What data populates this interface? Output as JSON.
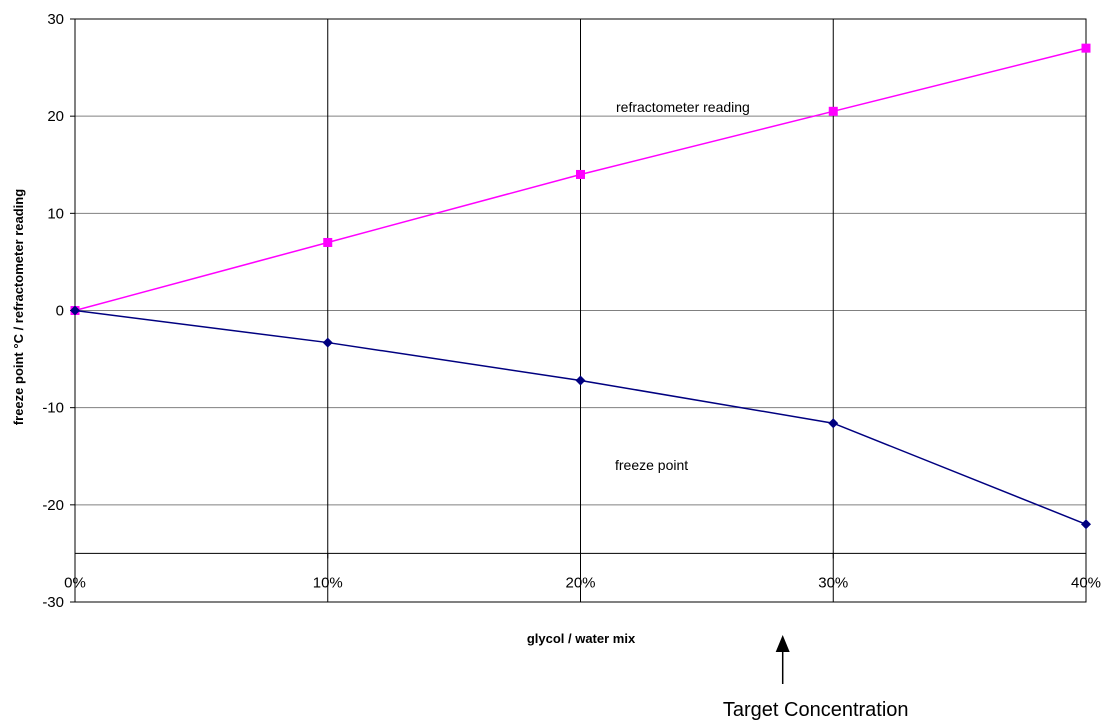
{
  "chart_data": {
    "type": "line",
    "xlabel": "glycol / water mix",
    "ylabel": "freeze point °C / refractometer reading",
    "categories": [
      "0%",
      "10%",
      "20%",
      "30%",
      "40%"
    ],
    "x": [
      0,
      10,
      20,
      30,
      40
    ],
    "ylim": [
      -30,
      30
    ],
    "yticks": [
      30,
      20,
      10,
      0,
      -10,
      -20,
      -30
    ],
    "x_axis_crosses_at": -25,
    "grid": true,
    "legend": "none",
    "series": [
      {
        "name": "refractometer reading",
        "values": [
          0,
          7,
          14,
          20.5,
          27
        ],
        "color": "#ff00ff",
        "marker": "square"
      },
      {
        "name": "freeze point",
        "values": [
          0,
          -3.3,
          -7.2,
          -11.6,
          -22
        ],
        "color": "#000080",
        "marker": "diamond"
      }
    ],
    "annotation": {
      "text": "Target Concentration",
      "x": 28
    }
  }
}
